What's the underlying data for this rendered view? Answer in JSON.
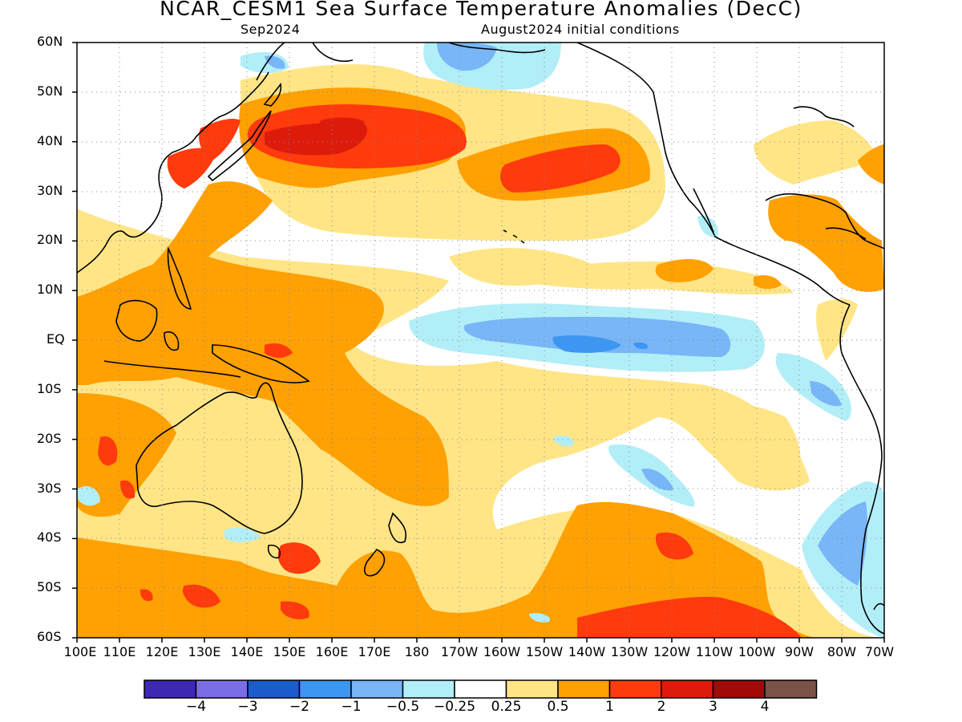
{
  "header": {
    "title": "NCAR_CESM1 Sea Surface Temperature Anomalies (DecC)",
    "valid_month": "Sep2024",
    "init": "August2024 initial conditions"
  },
  "map": {
    "region": "Pacific Ocean",
    "projection": "equirectangular",
    "lon_range": [
      "100E",
      "70W"
    ],
    "lat_range": [
      "60S",
      "60N"
    ],
    "gridlines": "dotted",
    "lat_labels": [
      "60N",
      "50N",
      "40N",
      "30N",
      "20N",
      "10N",
      "EQ",
      "10S",
      "20S",
      "30S",
      "40S",
      "50S",
      "60S"
    ],
    "lon_labels": [
      "100E",
      "110E",
      "120E",
      "130E",
      "140E",
      "150E",
      "160E",
      "170E",
      "180",
      "170W",
      "160W",
      "150W",
      "140W",
      "130W",
      "120W",
      "110W",
      "100W",
      "90W",
      "80W",
      "70W"
    ],
    "features": [
      {
        "name": "warm-anomaly-north-pacific-west",
        "sign": "warm",
        "max_class": "2"
      },
      {
        "name": "warm-anomaly-north-pacific-east",
        "sign": "warm",
        "max_class": "2"
      },
      {
        "name": "warm-anomaly-western-pacific",
        "sign": "warm",
        "max_class": "1"
      },
      {
        "name": "cool-anomaly-equatorial-pacific",
        "sign": "cool",
        "max_class": "-1"
      },
      {
        "name": "cool-anomaly-off-south-america",
        "sign": "cool",
        "max_class": "-1"
      },
      {
        "name": "warm-anomaly-southern-ocean",
        "sign": "warm",
        "max_class": "2"
      },
      {
        "name": "warm-anomaly-gulf-of-mexico-caribbean",
        "sign": "warm",
        "max_class": "1"
      }
    ]
  },
  "colorbar": {
    "colors": [
      "#3d28b4",
      "#7b6de6",
      "#1c5ccc",
      "#3c96f2",
      "#78b6f7",
      "#b2eef7",
      "#ffffff",
      "#ffe586",
      "#ffa003",
      "#ff3a0d",
      "#dd1b0b",
      "#a20a07",
      "#7a5246"
    ],
    "labels": [
      "−4",
      "−3",
      "−2",
      "−1",
      "−0.5",
      "−0.25",
      "0.25",
      "0.5",
      "1",
      "2",
      "3",
      "4"
    ]
  }
}
